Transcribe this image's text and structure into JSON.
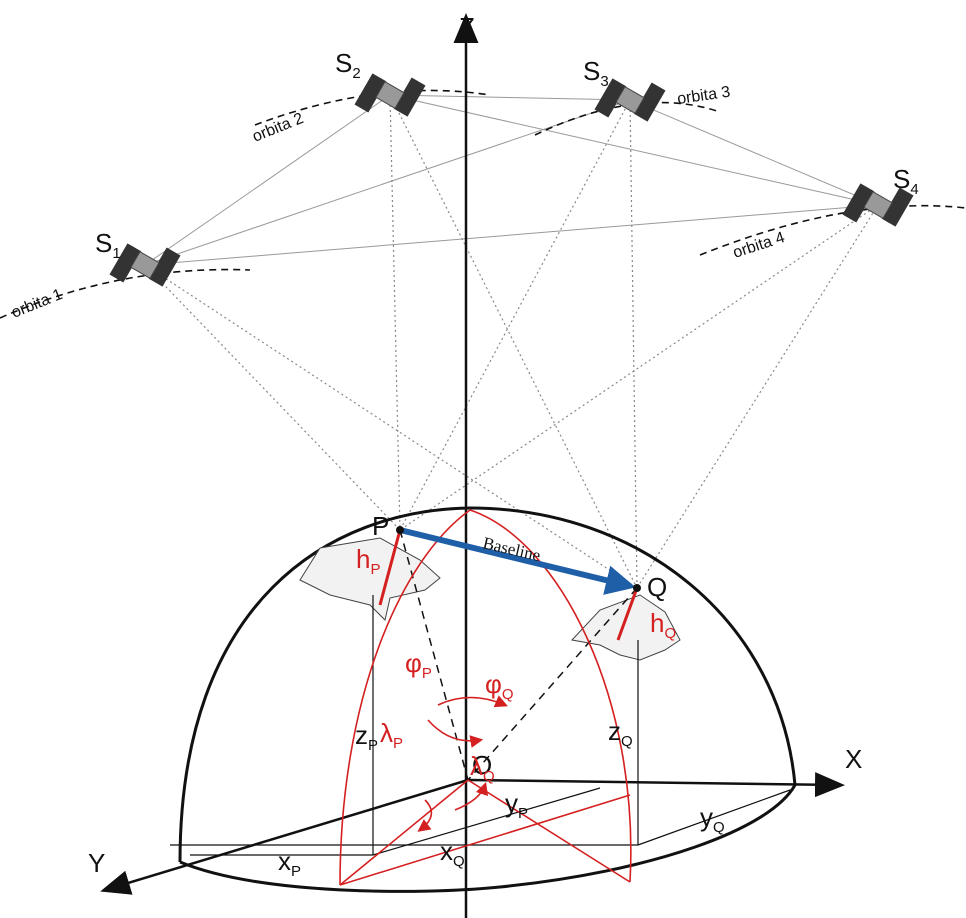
{
  "axes": {
    "z": "Z",
    "x": "X",
    "y": "Y",
    "origin": "O"
  },
  "satellites": [
    {
      "label": "S",
      "sub": "1"
    },
    {
      "label": "S",
      "sub": "2"
    },
    {
      "label": "S",
      "sub": "3"
    },
    {
      "label": "S",
      "sub": "4"
    }
  ],
  "orbits": [
    "orbita 1",
    "orbita 2",
    "orbita 3",
    "orbita 4"
  ],
  "points": {
    "p": "P",
    "q": "Q"
  },
  "baseline": "Baseline",
  "heights": [
    {
      "label": "h",
      "sub": "P"
    },
    {
      "label": "h",
      "sub": "Q"
    }
  ],
  "latitudes": [
    {
      "label": "φ",
      "sub": "P"
    },
    {
      "label": "φ",
      "sub": "Q"
    }
  ],
  "longitudes": [
    {
      "label": "λ",
      "sub": "P"
    },
    {
      "label": "λ",
      "sub": "Q"
    }
  ],
  "coordinates": {
    "x": [
      {
        "label": "x",
        "sub": "P"
      },
      {
        "label": "x",
        "sub": "Q"
      }
    ],
    "y": [
      {
        "label": "y",
        "sub": "P"
      },
      {
        "label": "y",
        "sub": "Q"
      }
    ],
    "z": [
      {
        "label": "z",
        "sub": "P"
      },
      {
        "label": "z",
        "sub": "Q"
      }
    ]
  }
}
